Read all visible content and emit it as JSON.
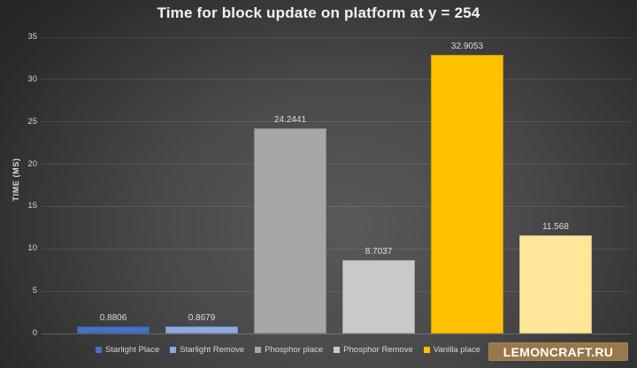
{
  "chart_data": {
    "type": "bar",
    "title": "Time for block update on platform at y = 254",
    "xlabel": "",
    "ylabel": "TIME (MS)",
    "ylim": [
      0,
      35
    ],
    "ytick_step": 5,
    "yticks": [
      0,
      5,
      10,
      15,
      20,
      25,
      30,
      35
    ],
    "grid": true,
    "legend_position": "bottom",
    "series": [
      {
        "name": "Starlight Place",
        "value": 0.8806,
        "label": "0.8806",
        "color": "#4472C4"
      },
      {
        "name": "Starlight Remove",
        "value": 0.8679,
        "label": "0.8679",
        "color": "#8FAADC"
      },
      {
        "name": "Phosphor place",
        "value": 24.2441,
        "label": "24.2441",
        "color": "#A6A6A6"
      },
      {
        "name": "Phosphor Remove",
        "value": 8.7037,
        "label": "8.7037",
        "color": "#C9C9C9"
      },
      {
        "name": "Vanilla place",
        "value": 32.9053,
        "label": "32.9053",
        "color": "#FFC000"
      },
      {
        "name": "",
        "value": 11.568,
        "label": "11.568",
        "color": "#FFE699"
      }
    ]
  },
  "watermark": {
    "text": "LEMONCRAFT.RU",
    "color": "#97794A"
  }
}
